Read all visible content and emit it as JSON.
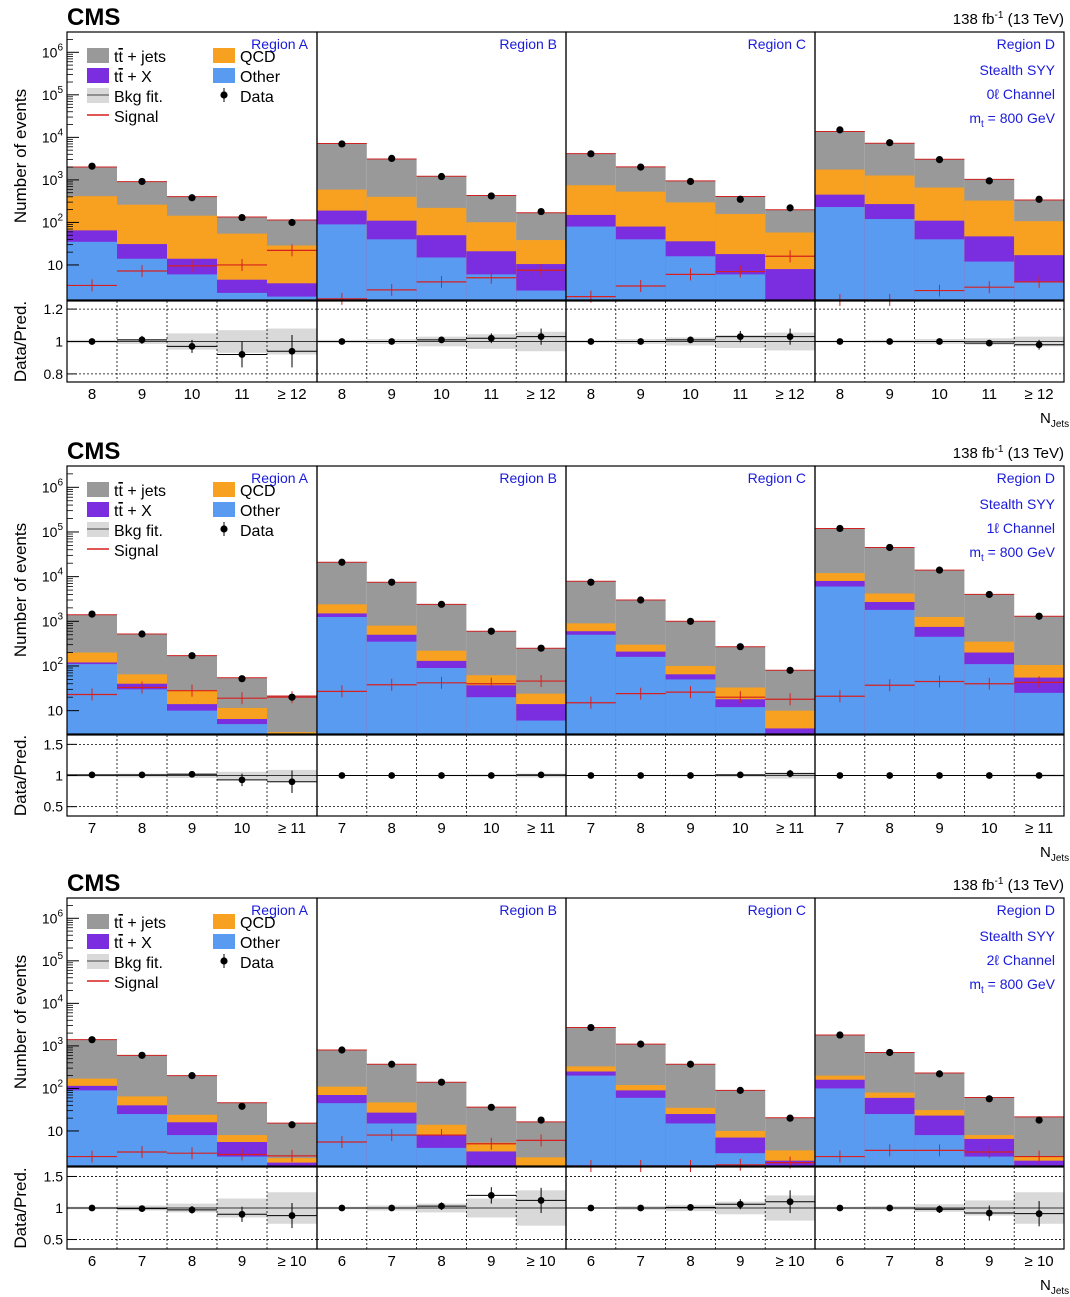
{
  "header": {
    "experiment": "CMS",
    "lumi_main": "138 fb",
    "lumi_sup": "-1",
    "lumi_energy": "(13 TeV)"
  },
  "axis_text": {
    "ylabel_top": "Number of events",
    "ylabel_bottom": "Data/Pred.",
    "xlabel_main": "N",
    "xlabel_sub": "Jets"
  },
  "legend": {
    "ttjets_pre": "t",
    "ttjets_bar": "t",
    "ttjets_post": " + jets",
    "ttx_pre": "t",
    "ttx_bar": "t",
    "ttx_post": " + X",
    "bkgfit": "Bkg fit.",
    "signal": "Signal",
    "qcd": "QCD",
    "other": "Other",
    "data": "Data"
  },
  "colors": {
    "ttjets": "#999999",
    "ttx": "#7b2ee0",
    "qcd": "#f8a01f",
    "other": "#5a9bf2",
    "bkgfit_band": "#d9d9d9",
    "signal": "#d6201f",
    "data": "#000000",
    "region_label": "#1a1adc"
  },
  "region_labels": [
    "Region A",
    "Region B",
    "Region C",
    "Region D"
  ],
  "chart_data": [
    {
      "type": "bar",
      "stacked": true,
      "yscale": "log",
      "ylim": [
        1.5,
        3000000
      ],
      "ratio_ylim": [
        0.75,
        1.25
      ],
      "ratio_ticks": [
        "1.2",
        "1",
        "0.8"
      ],
      "ratio_tick_values": [
        1.2,
        1.0,
        0.8
      ],
      "categories": [
        "8",
        "9",
        "10",
        "11",
        "≥ 12"
      ],
      "info_lines": [
        "Stealth SYY",
        "0ℓ Channel"
      ],
      "mass_label": "m",
      "mass_sub": "t",
      "mass_value": " = 800 GeV",
      "regions": [
        {
          "name": "Region A",
          "other": [
            35,
            14,
            6,
            2.2,
            1.8
          ],
          "ttx": [
            30,
            17,
            8,
            2.3,
            1.9
          ],
          "qcd": [
            350,
            230,
            130,
            50,
            25
          ],
          "ttjets": [
            1600,
            650,
            260,
            80,
            85
          ],
          "data": [
            2100,
            920,
            380,
            130,
            100
          ],
          "ratio": [
            1.0,
            1.01,
            0.97,
            0.92,
            0.94
          ],
          "ratio_err": [
            0.02,
            0.025,
            0.04,
            0.08,
            0.1
          ],
          "band": [
            0.01,
            0.015,
            0.05,
            0.07,
            0.08
          ],
          "signal": [
            3.3,
            7.2,
            9.5,
            10,
            22
          ]
        },
        {
          "name": "Region B",
          "other": [
            90,
            40,
            15,
            6,
            2.5
          ],
          "ttx": [
            100,
            70,
            35,
            15,
            8
          ],
          "qcd": [
            400,
            290,
            170,
            80,
            28
          ],
          "ttjets": [
            6600,
            2700,
            1000,
            330,
            130
          ],
          "data": [
            7000,
            3200,
            1200,
            420,
            180
          ],
          "ratio": [
            1.0,
            1.0,
            1.01,
            1.02,
            1.03
          ],
          "ratio_err": [
            0.01,
            0.01,
            0.02,
            0.03,
            0.05
          ],
          "band": [
            0.01,
            0.015,
            0.03,
            0.045,
            0.06
          ],
          "signal": [
            1.6,
            2.6,
            4,
            5,
            7.5
          ]
        },
        {
          "name": "Region C",
          "other": [
            80,
            40,
            16,
            6,
            1.5
          ],
          "ttx": [
            70,
            40,
            20,
            12,
            6.5
          ],
          "qcd": [
            600,
            450,
            260,
            140,
            50
          ],
          "ttjets": [
            3400,
            1500,
            650,
            250,
            140
          ],
          "data": [
            4100,
            2000,
            920,
            350,
            220
          ],
          "ratio": [
            1.0,
            1.0,
            1.01,
            1.03,
            1.03
          ],
          "ratio_err": [
            0.01,
            0.015,
            0.02,
            0.035,
            0.05
          ],
          "band": [
            0.008,
            0.015,
            0.025,
            0.04,
            0.055
          ],
          "signal": [
            1.8,
            3.2,
            6,
            7,
            16
          ]
        },
        {
          "name": "Region D",
          "other": [
            230,
            120,
            40,
            12,
            4
          ],
          "ttx": [
            220,
            150,
            70,
            35,
            13
          ],
          "qcd": [
            1300,
            1000,
            550,
            280,
            90
          ],
          "ttjets": [
            12000,
            6000,
            2400,
            700,
            230
          ],
          "data": [
            15000,
            7500,
            3000,
            950,
            350
          ],
          "ratio": [
            1.0,
            1.0,
            1.0,
            0.99,
            0.98
          ],
          "ratio_err": [
            0.005,
            0.008,
            0.01,
            0.02,
            0.03
          ],
          "band": [
            0.006,
            0.01,
            0.015,
            0.02,
            0.03
          ],
          "signal": [
            1.2,
            1.5,
            2.5,
            3,
            4
          ]
        }
      ]
    },
    {
      "type": "bar",
      "stacked": true,
      "yscale": "log",
      "ylim": [
        3,
        3000000
      ],
      "ratio_ylim": [
        0.35,
        1.65
      ],
      "ratio_ticks": [
        "1.5",
        "1",
        "0.5"
      ],
      "ratio_tick_values": [
        1.5,
        1.0,
        0.5
      ],
      "categories": [
        "7",
        "8",
        "9",
        "10",
        "≥ 11"
      ],
      "info_lines": [
        "Stealth SYY",
        "1ℓ Channel"
      ],
      "mass_label": "m",
      "mass_sub": "t",
      "mass_value": " = 800 GeV",
      "regions": [
        {
          "name": "Region A",
          "other": [
            110,
            30,
            10,
            5,
            1
          ],
          "ttx": [
            10,
            10,
            4,
            1.5,
            0.3
          ],
          "qcd": [
            80,
            25,
            15,
            5,
            2
          ],
          "ttjets": [
            1200,
            455,
            141,
            43,
            18
          ],
          "data": [
            1450,
            520,
            170,
            52,
            20
          ],
          "ratio": [
            1.01,
            1.01,
            1.02,
            0.93,
            0.9
          ],
          "ratio_err": [
            0.03,
            0.04,
            0.05,
            0.1,
            0.18
          ],
          "band": [
            0.02,
            0.03,
            0.04,
            0.06,
            0.09
          ],
          "signal": [
            23,
            33,
            28,
            19,
            20
          ]
        },
        {
          "name": "Region B",
          "other": [
            1250,
            350,
            90,
            20,
            6
          ],
          "ttx": [
            250,
            150,
            40,
            17,
            8
          ],
          "qcd": [
            900,
            300,
            90,
            25,
            10
          ],
          "ttjets": [
            18600,
            6700,
            2180,
            538,
            226
          ],
          "data": [
            21000,
            7500,
            2400,
            600,
            250
          ],
          "ratio": [
            1.0,
            1.0,
            1.0,
            1.0,
            1.01
          ],
          "ratio_err": [
            0.005,
            0.01,
            0.015,
            0.02,
            0.03
          ],
          "band": [
            0.005,
            0.008,
            0.012,
            0.02,
            0.03
          ],
          "signal": [
            27,
            38,
            42,
            40,
            46
          ]
        },
        {
          "name": "Region C",
          "other": [
            500,
            160,
            50,
            12,
            1.6
          ],
          "ttx": [
            100,
            50,
            15,
            6,
            2.4
          ],
          "qcd": [
            300,
            90,
            35,
            15,
            6
          ],
          "ttjets": [
            7000,
            2700,
            900,
            237,
            70
          ],
          "data": [
            7500,
            3000,
            1000,
            270,
            80
          ],
          "ratio": [
            1.0,
            1.0,
            1.0,
            1.01,
            1.03
          ],
          "ratio_err": [
            0.01,
            0.01,
            0.015,
            0.03,
            0.06
          ],
          "band": [
            0.008,
            0.01,
            0.015,
            0.025,
            0.05
          ],
          "signal": [
            15,
            24,
            26,
            20,
            18
          ]
        },
        {
          "name": "Region D",
          "other": [
            6000,
            1800,
            450,
            110,
            25
          ],
          "ttx": [
            2000,
            900,
            300,
            90,
            30
          ],
          "qcd": [
            4000,
            1500,
            500,
            150,
            50
          ],
          "ttjets": [
            108000,
            40800,
            12750,
            3650,
            1195
          ],
          "data": [
            120000,
            45000,
            14000,
            4000,
            1300
          ],
          "ratio": [
            1.0,
            1.0,
            1.0,
            1.0,
            1.0
          ],
          "ratio_err": [
            0.003,
            0.005,
            0.008,
            0.01,
            0.02
          ],
          "band": [
            0.003,
            0.005,
            0.008,
            0.01,
            0.02
          ],
          "signal": [
            21,
            37,
            45,
            40,
            43
          ]
        }
      ]
    },
    {
      "type": "bar",
      "stacked": true,
      "yscale": "log",
      "ylim": [
        1.5,
        3000000
      ],
      "ratio_ylim": [
        0.35,
        1.65
      ],
      "ratio_ticks": [
        "1.5",
        "1",
        "0.5"
      ],
      "ratio_tick_values": [
        1.5,
        1.0,
        0.5
      ],
      "categories": [
        "6",
        "7",
        "8",
        "9",
        "≥ 10"
      ],
      "info_lines": [
        "Stealth SYY",
        "2ℓ Channel"
      ],
      "mass_label": "m",
      "mass_sub": "t",
      "mass_value": " = 800 GeV",
      "regions": [
        {
          "name": "Region A",
          "other": [
            90,
            25,
            8,
            2.5,
            1
          ],
          "ttx": [
            25,
            15,
            8,
            3,
            0.8
          ],
          "qcd": [
            55,
            25,
            8,
            2.5,
            0.5
          ],
          "ttjets": [
            1230,
            535,
            176,
            38,
            13
          ],
          "data": [
            1400,
            600,
            200,
            38,
            14
          ],
          "ratio": [
            1.0,
            0.99,
            0.97,
            0.9,
            0.88
          ],
          "ratio_err": [
            0.03,
            0.04,
            0.06,
            0.12,
            0.2
          ],
          "band": [
            0.02,
            0.04,
            0.07,
            0.15,
            0.25
          ],
          "signal": [
            2.5,
            3.2,
            3.0,
            2.8,
            2.6
          ]
        },
        {
          "name": "Region B",
          "other": [
            45,
            15,
            4,
            1.5,
            0.5
          ],
          "ttx": [
            25,
            12,
            4,
            1.8,
            0.9
          ],
          "qcd": [
            40,
            20,
            6,
            2,
            1
          ],
          "ttjets": [
            690,
            323,
            126,
            31,
            14
          ],
          "data": [
            800,
            370,
            140,
            36,
            18
          ],
          "ratio": [
            1.0,
            1.0,
            1.03,
            1.2,
            1.12
          ],
          "ratio_err": [
            0.02,
            0.03,
            0.06,
            0.13,
            0.2
          ],
          "band": [
            0.02,
            0.04,
            0.07,
            0.15,
            0.28
          ],
          "signal": [
            5.5,
            8,
            8,
            5,
            6
          ]
        },
        {
          "name": "Region C",
          "other": [
            200,
            60,
            15,
            3,
            0.8
          ],
          "ttx": [
            50,
            30,
            10,
            4,
            1.2
          ],
          "qcd": [
            80,
            30,
            10,
            3,
            1.5
          ],
          "ttjets": [
            2370,
            980,
            335,
            80,
            17
          ],
          "data": [
            2700,
            1100,
            370,
            90,
            20
          ],
          "ratio": [
            1.0,
            1.0,
            1.01,
            1.06,
            1.1
          ],
          "ratio_err": [
            0.01,
            0.02,
            0.04,
            0.08,
            0.18
          ],
          "band": [
            0.01,
            0.03,
            0.05,
            0.1,
            0.2
          ],
          "signal": [
            1.4,
            1.5,
            1.5,
            1.6,
            1.8
          ]
        },
        {
          "name": "Region D",
          "other": [
            100,
            25,
            8,
            2.5,
            0.8
          ],
          "ttx": [
            60,
            35,
            15,
            4,
            1.2
          ],
          "qcd": [
            40,
            20,
            8,
            1.5,
            0.5
          ],
          "ttjets": [
            1600,
            620,
            200,
            53,
            19
          ],
          "data": [
            1800,
            700,
            220,
            57,
            18
          ],
          "ratio": [
            1.0,
            1.0,
            0.98,
            0.92,
            0.91
          ],
          "ratio_err": [
            0.02,
            0.03,
            0.06,
            0.12,
            0.2
          ],
          "band": [
            0.02,
            0.03,
            0.06,
            0.12,
            0.25
          ],
          "signal": [
            2.5,
            3.5,
            3.5,
            3.2,
            2.5
          ]
        }
      ]
    }
  ]
}
